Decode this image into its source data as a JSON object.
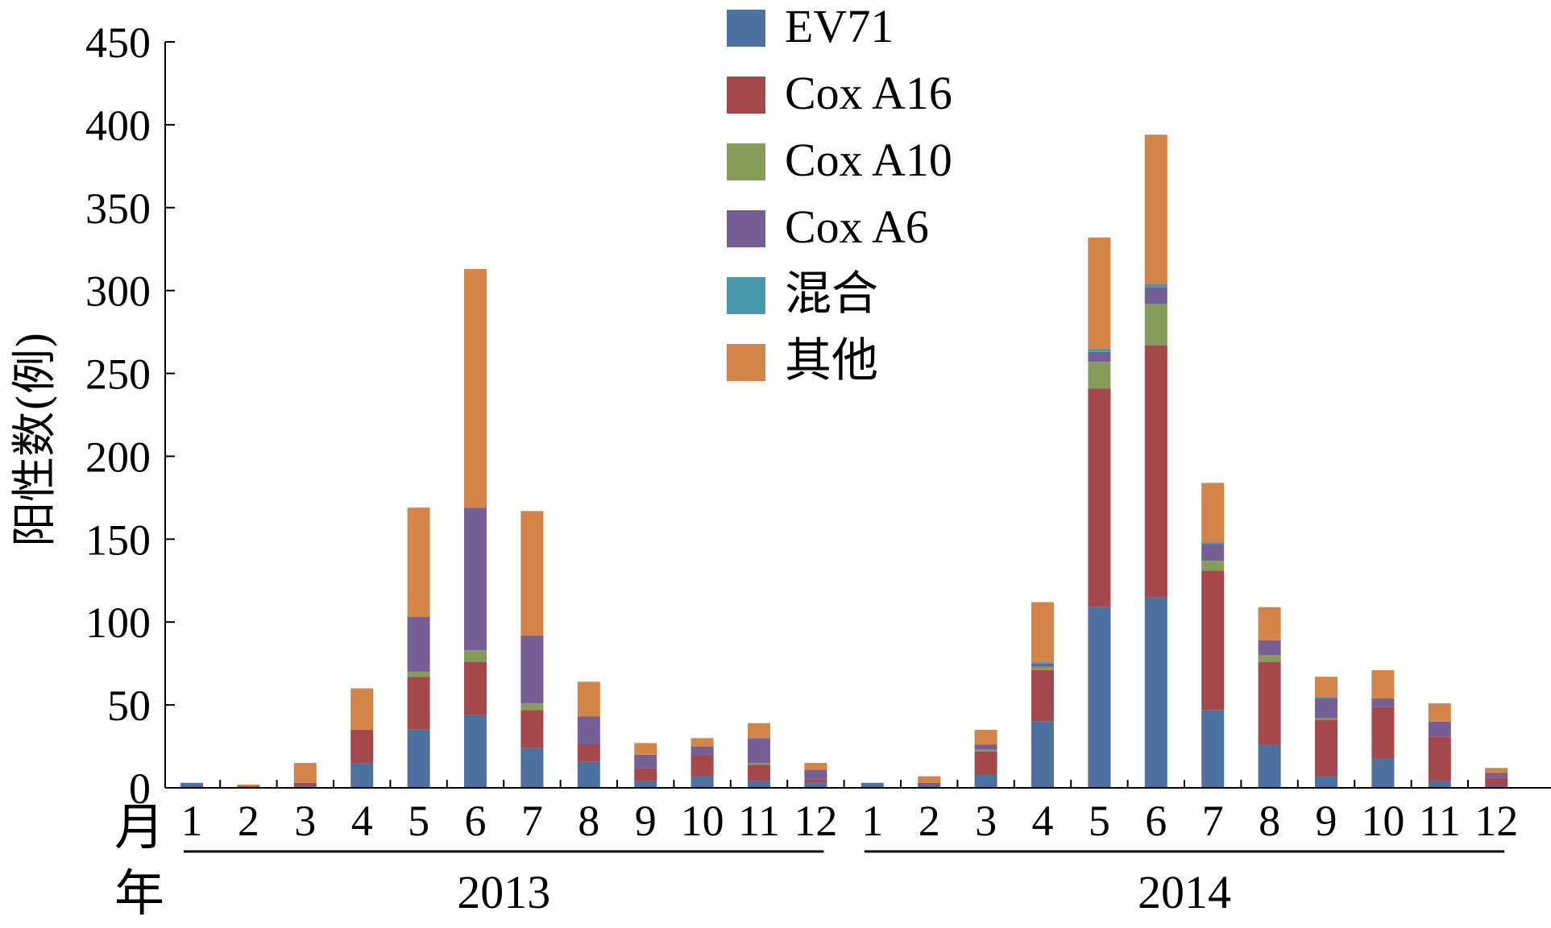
{
  "chart_data": {
    "type": "bar",
    "stacked": true,
    "ylabel": "阳性数(例)",
    "ylim": [
      0,
      450
    ],
    "yticks": [
      0,
      50,
      100,
      150,
      200,
      250,
      300,
      350,
      400,
      450
    ],
    "x_row_label": "月",
    "year_row_label": "年",
    "categories": [
      "1",
      "2",
      "3",
      "4",
      "5",
      "6",
      "7",
      "8",
      "9",
      "10",
      "11",
      "12",
      "1",
      "2",
      "3",
      "4",
      "5",
      "6",
      "7",
      "8",
      "9",
      "10",
      "11",
      "12"
    ],
    "year_groups": [
      {
        "label": "2013",
        "start": 0,
        "end": 11
      },
      {
        "label": "2014",
        "start": 12,
        "end": 23
      }
    ],
    "legend_position": "top-center",
    "series": [
      {
        "name": "EV71",
        "color": "#4e72a0",
        "values": [
          3,
          0,
          1,
          15,
          35,
          44,
          24,
          16,
          4,
          7,
          4,
          3,
          3,
          2,
          8,
          40,
          109,
          115,
          47,
          26,
          7,
          18,
          4,
          1
        ]
      },
      {
        "name": "Cox A16",
        "color": "#a4484b",
        "values": [
          0,
          1,
          2,
          20,
          32,
          32,
          23,
          10,
          8,
          13,
          10,
          2,
          0,
          1,
          14,
          31,
          132,
          152,
          84,
          50,
          34,
          31,
          27,
          5
        ]
      },
      {
        "name": "Cox A10",
        "color": "#869c5b",
        "values": [
          0,
          0,
          0,
          0,
          3,
          7,
          4,
          0,
          0,
          0,
          1,
          0,
          0,
          0,
          1,
          2,
          16,
          25,
          6,
          4,
          1,
          0,
          0,
          0
        ]
      },
      {
        "name": "Cox A6",
        "color": "#755f94",
        "values": [
          0,
          0,
          0,
          0,
          33,
          86,
          41,
          17,
          8,
          5,
          15,
          6,
          0,
          0,
          3,
          2,
          6,
          10,
          10,
          9,
          12,
          5,
          9,
          3
        ]
      },
      {
        "name": "混合",
        "color": "#4a98ab",
        "values": [
          0,
          0,
          0,
          0,
          0,
          0,
          0,
          0,
          0,
          0,
          0,
          0,
          0,
          0,
          0,
          1,
          2,
          2,
          1,
          0,
          1,
          0,
          0,
          0
        ]
      },
      {
        "name": "其他",
        "color": "#d38549",
        "values": [
          0,
          1,
          12,
          25,
          66,
          144,
          75,
          21,
          7,
          5,
          9,
          4,
          0,
          4,
          9,
          36,
          67,
          90,
          36,
          20,
          12,
          17,
          11,
          3
        ]
      }
    ]
  }
}
